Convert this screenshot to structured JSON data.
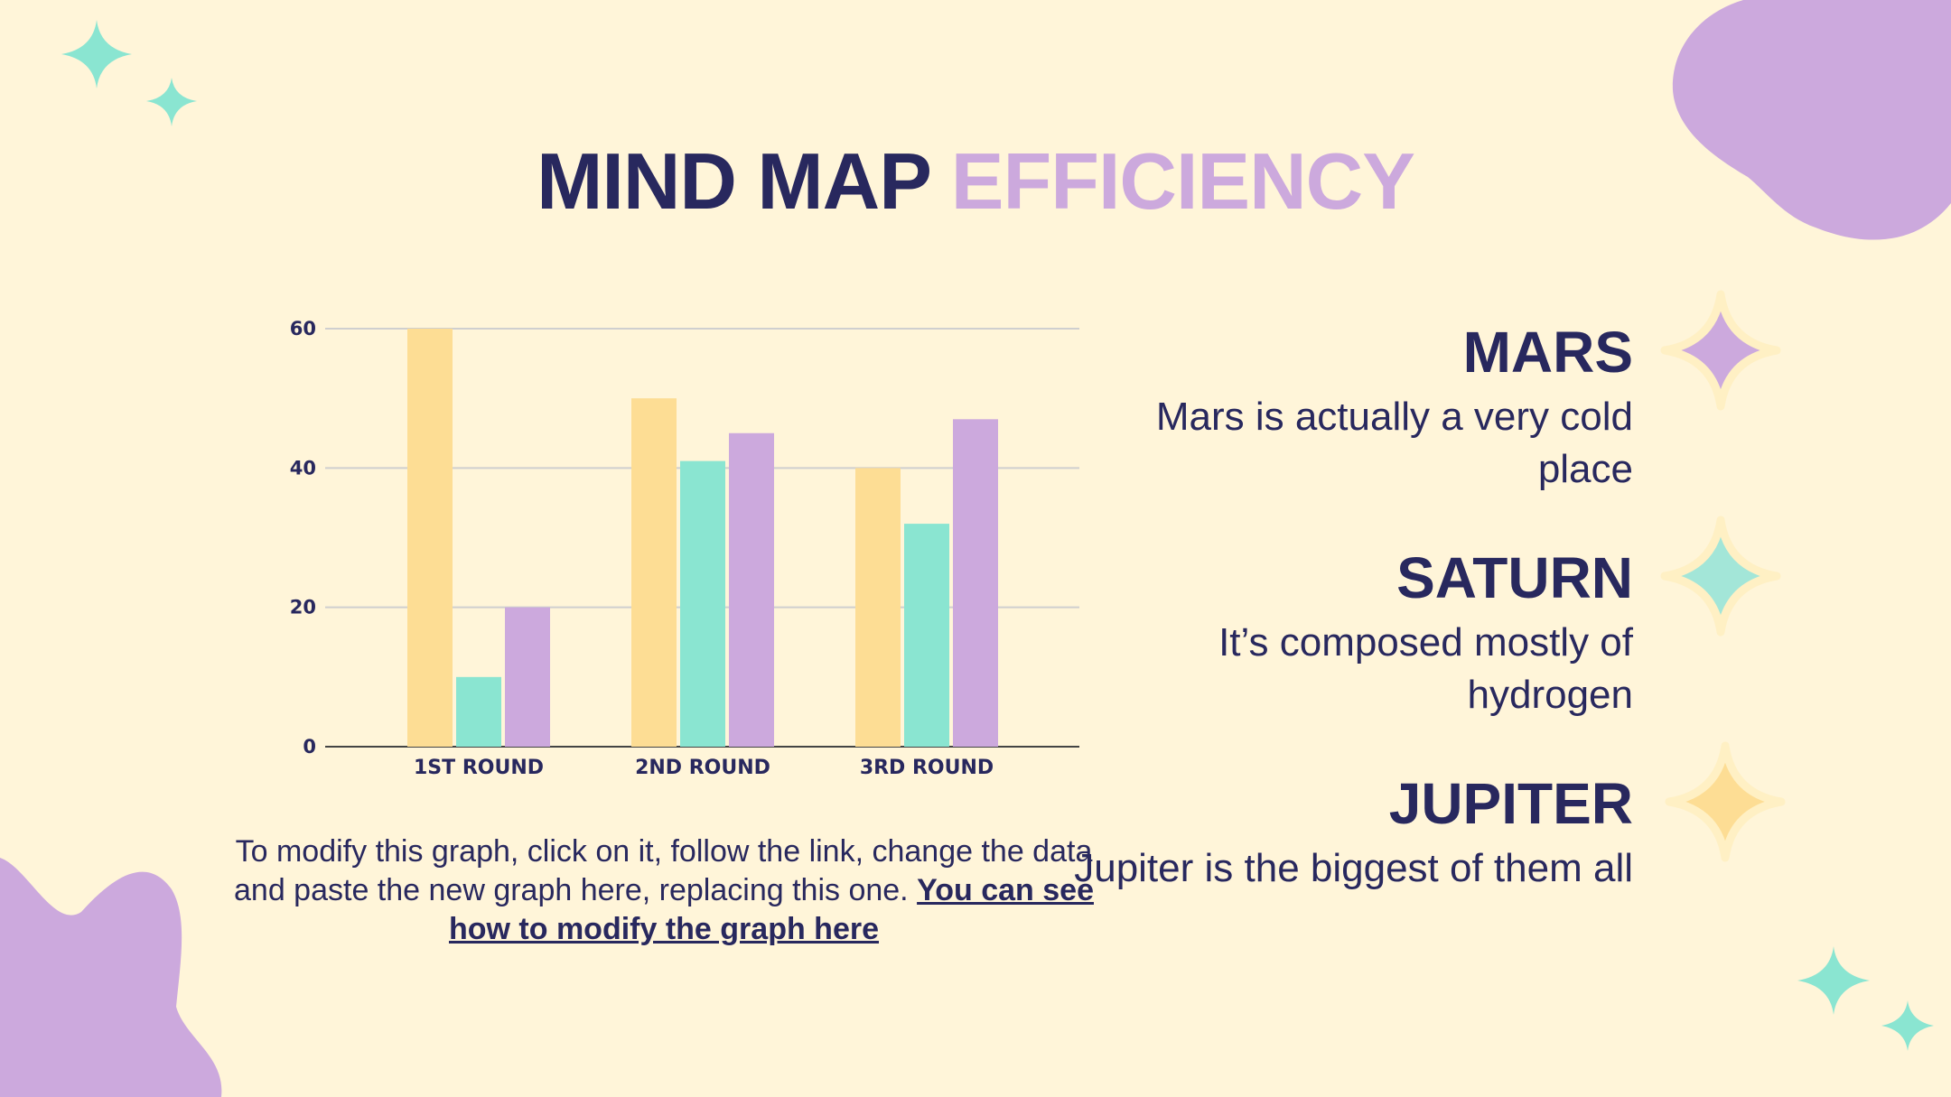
{
  "title": {
    "part1": "MIND MAP",
    "part2": "EFFICIENCY"
  },
  "colors": {
    "dark": "#28285E",
    "yellow": "#FDDD94",
    "mint": "#8AE5D1",
    "lavender": "#CCA9DD",
    "background": "#FFF5D9"
  },
  "chart_data": {
    "type": "bar",
    "categories": [
      "1ST ROUND",
      "2ND ROUND",
      "3RD ROUND"
    ],
    "series": [
      {
        "values": [
          60,
          50,
          40
        ],
        "color": "#FDDD94"
      },
      {
        "values": [
          10,
          41,
          32
        ],
        "color": "#8AE5D1"
      },
      {
        "values": [
          20,
          45,
          47
        ],
        "color": "#CCA9DD"
      }
    ],
    "yticks": [
      0,
      20,
      40,
      60
    ],
    "ylim": [
      0,
      60
    ],
    "grid": true,
    "legend": "none"
  },
  "caption": {
    "text": "To modify this graph, click on it, follow the link, change the data and paste the new graph here, replacing this one. ",
    "link": "You can see how to modify the graph here"
  },
  "planets": [
    {
      "name": "MARS",
      "desc": "Mars is actually a very cold place",
      "icon": "lavender-star-icon",
      "color": "#CCA9DD"
    },
    {
      "name": "SATURN",
      "desc": "It’s composed mostly of hydrogen",
      "icon": "mint-star-icon",
      "color": "#A3E6D8"
    },
    {
      "name": "JUPITER",
      "desc": "Jupiter is the biggest of them all",
      "icon": "yellow-star-icon",
      "color": "#FDDD94"
    }
  ]
}
